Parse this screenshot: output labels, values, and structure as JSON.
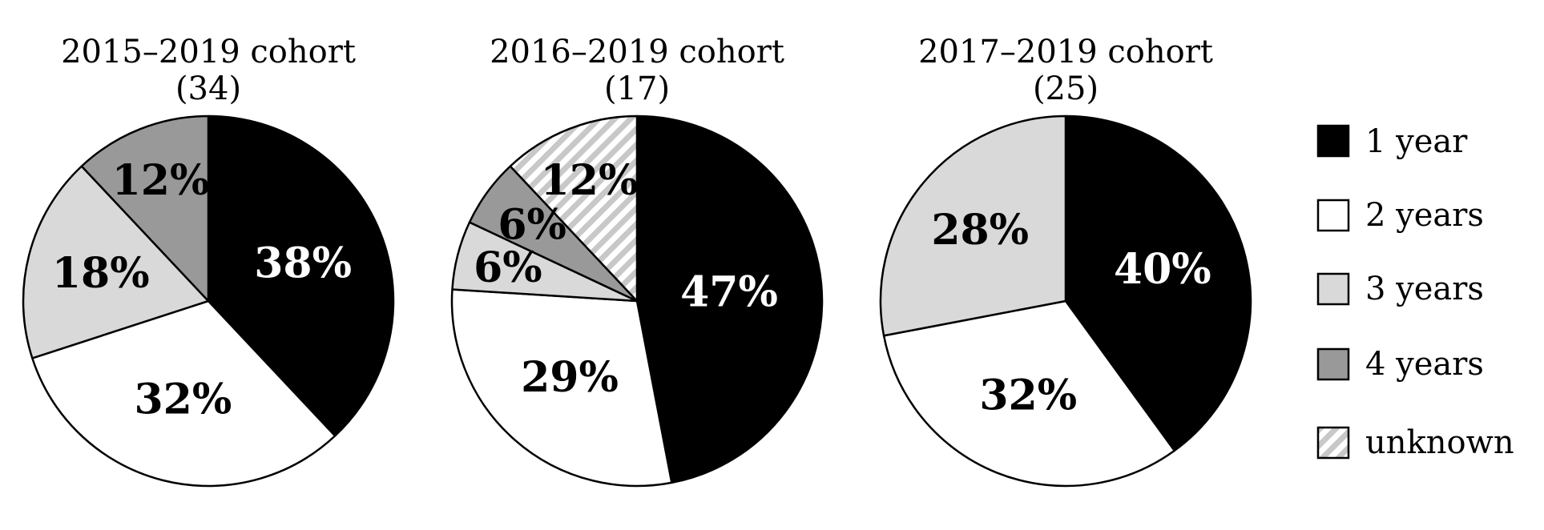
{
  "chart_data": [
    {
      "type": "pie",
      "title": "2015–2019 cohort",
      "subtitle": "(34)",
      "slices": [
        {
          "category": "1 year",
          "value": 38,
          "label": "38%"
        },
        {
          "category": "2 years",
          "value": 32,
          "label": "32%"
        },
        {
          "category": "3 years",
          "value": 18,
          "label": "18%"
        },
        {
          "category": "4 years",
          "value": 12,
          "label": "12%"
        }
      ]
    },
    {
      "type": "pie",
      "title": "2016–2019 cohort",
      "subtitle": "(17)",
      "slices": [
        {
          "category": "1 year",
          "value": 47,
          "label": "47%"
        },
        {
          "category": "2 years",
          "value": 29,
          "label": "29%"
        },
        {
          "category": "3 years",
          "value": 6,
          "label": "6%"
        },
        {
          "category": "4 years",
          "value": 6,
          "label": "6%"
        },
        {
          "category": "unknown",
          "value": 12,
          "label": "12%"
        }
      ]
    },
    {
      "type": "pie",
      "title": "2017–2019 cohort",
      "subtitle": "(25)",
      "slices": [
        {
          "category": "1 year",
          "value": 40,
          "label": "40%"
        },
        {
          "category": "2 years",
          "value": 32,
          "label": "32%"
        },
        {
          "category": "3 years",
          "value": 28,
          "label": "28%"
        }
      ]
    }
  ],
  "legend": {
    "placement": "right",
    "items": [
      {
        "category": "1 year",
        "label": "1 year",
        "fill": "#000000",
        "pattern": "solid",
        "text_color": "#ffffff"
      },
      {
        "category": "2 years",
        "label": "2 years",
        "fill": "#ffffff",
        "pattern": "solid",
        "text_color": "#000000"
      },
      {
        "category": "3 years",
        "label": "3 years",
        "fill": "#d9d9d9",
        "pattern": "solid",
        "text_color": "#000000"
      },
      {
        "category": "4 years",
        "label": "4 years",
        "fill": "#999999",
        "pattern": "solid",
        "text_color": "#000000"
      },
      {
        "category": "unknown",
        "label": "unknown",
        "fill": "#c8c8c8",
        "pattern": "diagonal-hatch",
        "text_color": "#000000"
      }
    ]
  }
}
